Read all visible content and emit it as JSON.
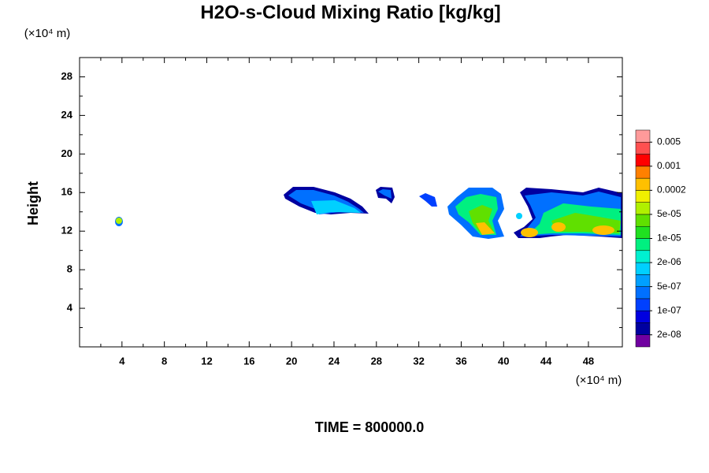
{
  "chart_data": {
    "type": "contour",
    "title": "H2O-s-Cloud Mixing Ratio [kg/kg]",
    "y_unit": "(×10⁴ m)",
    "x_unit": "(×10⁴ m)",
    "y_label": "Height",
    "time_label": "TIME = 800000.0",
    "xlim": [
      0,
      51.2
    ],
    "ylim": [
      0,
      30
    ],
    "xticks": [
      4,
      8,
      12,
      16,
      20,
      24,
      28,
      32,
      36,
      40,
      44,
      48
    ],
    "yticks": [
      4,
      8,
      12,
      16,
      20,
      24,
      28
    ],
    "colorbar": {
      "colors": [
        "#7000a0",
        "#0000a0",
        "#0000e0",
        "#0040ff",
        "#0070ff",
        "#00a0ff",
        "#00d0ff",
        "#00f0d0",
        "#00f080",
        "#20e020",
        "#60e000",
        "#b0f000",
        "#f0f000",
        "#ffc000",
        "#ff8000",
        "#ff0000",
        "#ff5050",
        "#ff9a9a"
      ],
      "ticks": [
        {
          "value": 2e-08,
          "label": "2e-08"
        },
        {
          "value": 1e-07,
          "label": "1e-07"
        },
        {
          "value": 5e-07,
          "label": "5e-07"
        },
        {
          "value": 2e-06,
          "label": "2e-06"
        },
        {
          "value": 1e-05,
          "label": "1e-05"
        },
        {
          "value": 5e-05,
          "label": "5e-05"
        },
        {
          "value": 0.0002,
          "label": "0.0002"
        },
        {
          "value": 0.001,
          "label": "0.001"
        },
        {
          "value": 0.005,
          "label": "0.005"
        }
      ]
    }
  }
}
